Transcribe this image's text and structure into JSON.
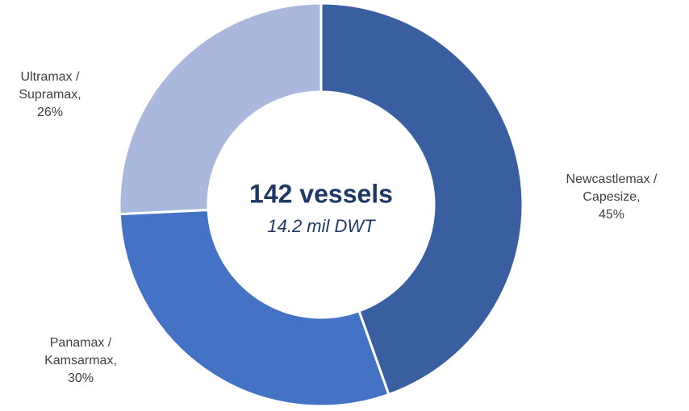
{
  "chart_data": {
    "type": "donut",
    "center_title": "142 vessels",
    "center_subtitle": "14.2 mil DWT",
    "categories": [
      "Newcastlemax / Capesize,",
      "Panamax / Kamsarmax,",
      "Ultramax / Supramax,"
    ],
    "values": [
      45,
      30,
      26
    ],
    "value_labels": [
      "45%",
      "30%",
      "26%"
    ],
    "colors": [
      "#3a5fa0",
      "#4472c4",
      "#a9b8dc"
    ]
  }
}
